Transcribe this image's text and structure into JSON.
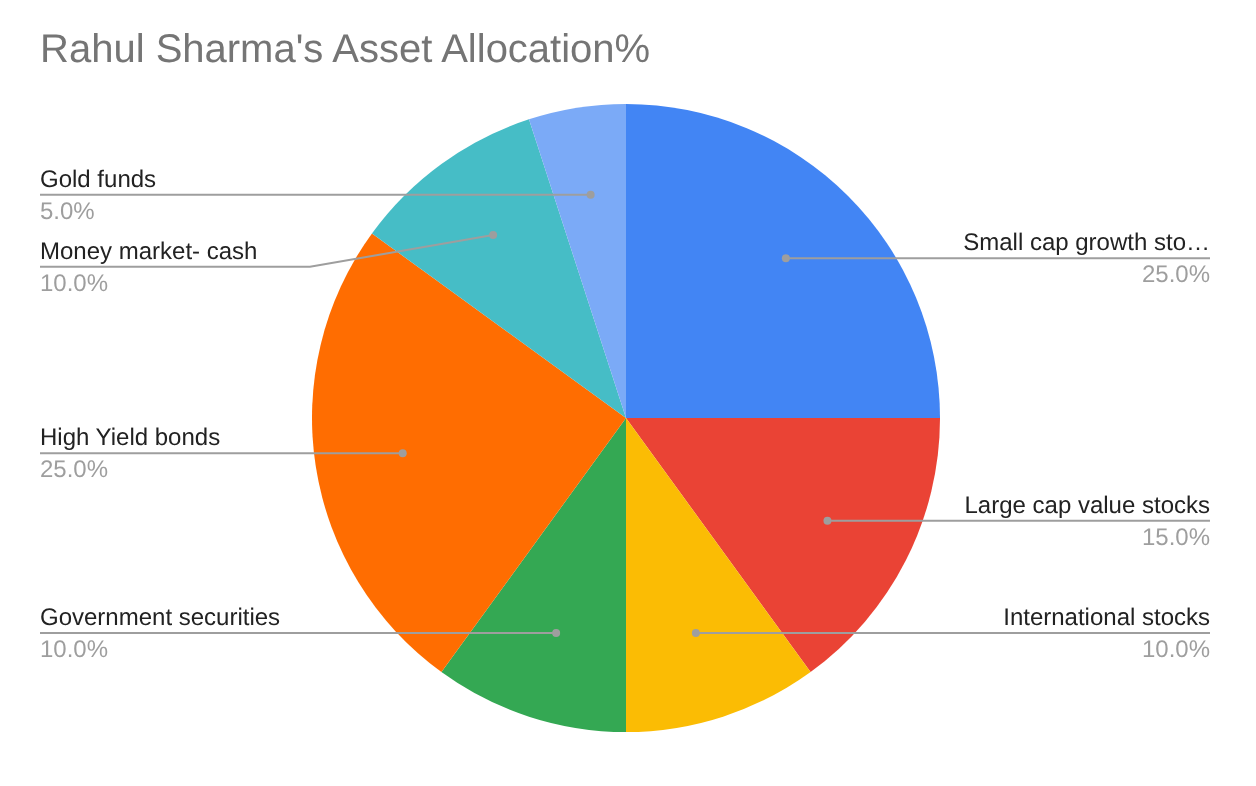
{
  "chart_data": {
    "type": "pie",
    "title": "Rahul Sharma's Asset Allocation%",
    "categories": [
      "Small cap growth sto…",
      "Large cap value stocks",
      "International stocks",
      "Government securities",
      "High Yield bonds",
      "Money market- cash",
      "Gold funds"
    ],
    "values": [
      25,
      15,
      10,
      10,
      25,
      10,
      5
    ],
    "value_labels": [
      "25.0%",
      "15.0%",
      "10.0%",
      "10.0%",
      "25.0%",
      "10.0%",
      "5.0%"
    ],
    "colors": [
      "#4285f4",
      "#ea4335",
      "#fbbc04",
      "#34a853",
      "#ff6d01",
      "#46bdc6",
      "#7baaf7"
    ],
    "legend": false
  }
}
